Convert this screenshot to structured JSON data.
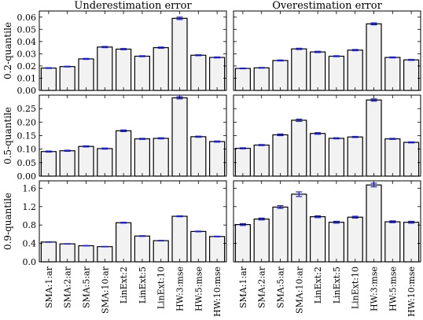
{
  "chart_data": {
    "type": "bar",
    "categories": [
      "SMA:1:ar",
      "SMA:2:ar",
      "SMA:5:ar",
      "SMA:10:ar",
      "LinExt:2",
      "LinExt:5",
      "LinExt:10",
      "HW:3:mse",
      "HW:5:mse",
      "HW:10:mse"
    ],
    "column_titles": [
      "Underestimation error",
      "Overestimation error"
    ],
    "row_labels": [
      "0.2-quantile",
      "0.5-quantile",
      "0.9-quantile"
    ],
    "colors": {
      "bar_fill": "#f2f2f2",
      "bar_edge": "#000000",
      "error_bar": "#1a1aee"
    },
    "panels": [
      {
        "row": 0,
        "col": 0,
        "ylim": [
          0,
          0.065
        ],
        "yticks": [
          0.0,
          0.01,
          0.02,
          0.03,
          0.04,
          0.05,
          0.06
        ],
        "ytick_labels": [
          "0.00",
          "0.01",
          "0.02",
          "0.03",
          "0.04",
          "0.05",
          "0.06"
        ],
        "values": [
          0.0183,
          0.0195,
          0.0258,
          0.0355,
          0.0338,
          0.028,
          0.035,
          0.059,
          0.0288,
          0.027
        ],
        "errors": [
          0.0003,
          0.0003,
          0.0004,
          0.0005,
          0.0005,
          0.0004,
          0.0005,
          0.001,
          0.0004,
          0.0004
        ]
      },
      {
        "row": 0,
        "col": 1,
        "ylim": [
          0,
          0.065
        ],
        "yticks": [],
        "ytick_labels": [],
        "values": [
          0.018,
          0.0185,
          0.0245,
          0.034,
          0.0315,
          0.028,
          0.033,
          0.0545,
          0.027,
          0.025
        ],
        "errors": [
          0.0003,
          0.0003,
          0.0004,
          0.0005,
          0.0005,
          0.0004,
          0.0005,
          0.0008,
          0.0004,
          0.0004
        ]
      },
      {
        "row": 1,
        "col": 0,
        "ylim": [
          0,
          0.3
        ],
        "yticks": [
          0.0,
          0.05,
          0.1,
          0.15,
          0.2,
          0.25
        ],
        "ytick_labels": [
          "0.00",
          "0.05",
          "0.10",
          "0.15",
          "0.20",
          "0.25"
        ],
        "values": [
          0.091,
          0.094,
          0.11,
          0.102,
          0.168,
          0.138,
          0.14,
          0.29,
          0.146,
          0.128
        ],
        "errors": [
          0.002,
          0.002,
          0.002,
          0.002,
          0.003,
          0.002,
          0.002,
          0.004,
          0.002,
          0.002
        ]
      },
      {
        "row": 1,
        "col": 1,
        "ylim": [
          0,
          0.3
        ],
        "yticks": [],
        "ytick_labels": [],
        "values": [
          0.103,
          0.115,
          0.153,
          0.207,
          0.158,
          0.14,
          0.145,
          0.282,
          0.138,
          0.125
        ],
        "errors": [
          0.002,
          0.002,
          0.003,
          0.004,
          0.003,
          0.002,
          0.002,
          0.004,
          0.002,
          0.002
        ]
      },
      {
        "row": 2,
        "col": 0,
        "ylim": [
          0,
          1.76
        ],
        "yticks": [
          0.0,
          0.4,
          0.8,
          1.2,
          1.6
        ],
        "ytick_labels": [
          "0.0",
          "0.4",
          "0.8",
          "1.2",
          "1.6"
        ],
        "values": [
          0.43,
          0.39,
          0.35,
          0.33,
          0.85,
          0.56,
          0.46,
          0.99,
          0.66,
          0.55
        ],
        "errors": [
          0.005,
          0.005,
          0.005,
          0.005,
          0.01,
          0.008,
          0.006,
          0.01,
          0.008,
          0.007
        ]
      },
      {
        "row": 2,
        "col": 1,
        "ylim": [
          0,
          1.76
        ],
        "yticks": [],
        "ytick_labels": [],
        "values": [
          0.81,
          0.93,
          1.19,
          1.47,
          0.98,
          0.86,
          0.97,
          1.67,
          0.87,
          0.86
        ],
        "errors": [
          0.02,
          0.02,
          0.03,
          0.05,
          0.02,
          0.02,
          0.02,
          0.04,
          0.02,
          0.02
        ]
      }
    ]
  }
}
